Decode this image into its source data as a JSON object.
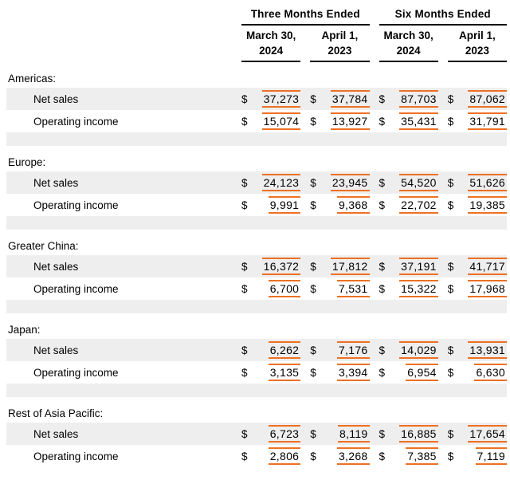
{
  "page": {
    "currency": "$",
    "colors": {
      "fact_highlight": "#ee7023",
      "row_shade": "#eeeeee",
      "rule": "#000000"
    }
  },
  "header": {
    "groups": [
      {
        "label": "Three Months Ended"
      },
      {
        "label": "Six Months Ended"
      }
    ],
    "columns": [
      {
        "line1": "March 30,",
        "line2": "2024"
      },
      {
        "line1": "April 1,",
        "line2": "2023"
      },
      {
        "line1": "March 30,",
        "line2": "2024"
      },
      {
        "line1": "April 1,",
        "line2": "2023"
      }
    ]
  },
  "sections": [
    {
      "name": "Americas:",
      "rows": [
        {
          "label": "Net sales",
          "values": [
            "37,273",
            "37,784",
            "87,703",
            "87,062"
          ]
        },
        {
          "label": "Operating income",
          "values": [
            "15,074",
            "13,927",
            "35,431",
            "31,791"
          ]
        }
      ]
    },
    {
      "name": "Europe:",
      "rows": [
        {
          "label": "Net sales",
          "values": [
            "24,123",
            "23,945",
            "54,520",
            "51,626"
          ]
        },
        {
          "label": "Operating income",
          "values": [
            "9,991",
            "9,368",
            "22,702",
            "19,385"
          ]
        }
      ]
    },
    {
      "name": "Greater China:",
      "rows": [
        {
          "label": "Net sales",
          "values": [
            "16,372",
            "17,812",
            "37,191",
            "41,717"
          ]
        },
        {
          "label": "Operating income",
          "values": [
            "6,700",
            "7,531",
            "15,322",
            "17,968"
          ]
        }
      ]
    },
    {
      "name": "Japan:",
      "rows": [
        {
          "label": "Net sales",
          "values": [
            "6,262",
            "7,176",
            "14,029",
            "13,931"
          ]
        },
        {
          "label": "Operating income",
          "values": [
            "3,135",
            "3,394",
            "6,954",
            "6,630"
          ]
        }
      ]
    },
    {
      "name": "Rest of Asia Pacific:",
      "rows": [
        {
          "label": "Net sales",
          "values": [
            "6,723",
            "8,119",
            "16,885",
            "17,654"
          ]
        },
        {
          "label": "Operating income",
          "values": [
            "2,806",
            "3,268",
            "7,385",
            "7,119"
          ]
        }
      ]
    }
  ]
}
